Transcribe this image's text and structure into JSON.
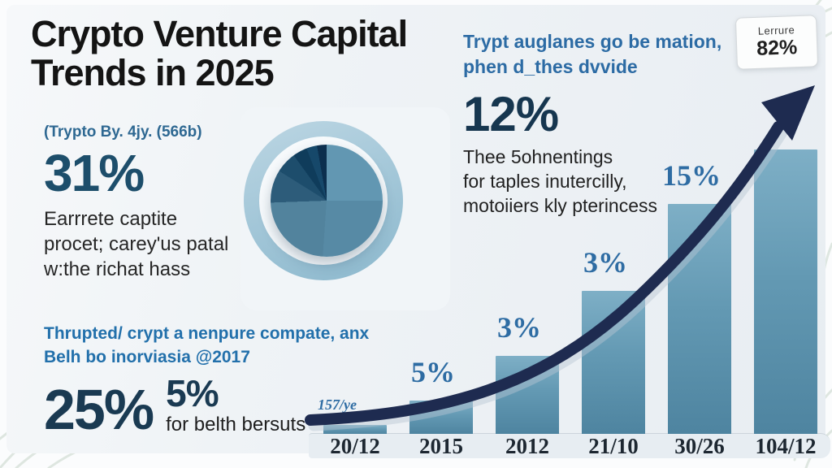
{
  "title": {
    "line1": "Crypto Venture Capital",
    "line2": "Trends in 2025"
  },
  "badge": {
    "label": "Lerrure",
    "value": "82%"
  },
  "left_stat": {
    "caption": "(Trypto By. 4jy. (566b)",
    "value": "31%",
    "desc_line1": "Earrrete captite",
    "desc_line2": "procet; carey'us patal",
    "desc_line3": "w:the richat hass"
  },
  "bottom_left": {
    "line1": "Thrupted/ crypt a nenpure compate, anx",
    "line2": "Belh bo inorviasia @2017",
    "big_value": "25%",
    "small_value": "5%",
    "caption": "for belth bersuts"
  },
  "right_block": {
    "line1": "Trypt auglanes go be mation,",
    "line2": "phen d_thes dvvide",
    "value": "12%",
    "desc_line1": "Thee 5ohnentings",
    "desc_line2": "for taples inutercilly,",
    "desc_line3": "motoiiers kly pterincess"
  },
  "chart_data": [
    {
      "type": "bar",
      "title": "",
      "xlabel": "",
      "ylabel": "",
      "categories": [
        "20/12",
        "2015",
        "2012",
        "21/10",
        "30/26",
        "104/12"
      ],
      "values": [
        11,
        41,
        96,
        176,
        283,
        350
      ],
      "values_note": "bar heights in px; baseline at y=528 of the 576px canvas",
      "bar_labels": [
        "157/ye",
        "5%",
        "3%",
        "3%",
        "15%",
        ""
      ],
      "grid": false,
      "legend": null,
      "trend_arrow": "dark navy exponential curve rising left-to-right, ending in an arrowhead at top right",
      "colors": {
        "bar_top": "#7eafc6",
        "bar_bottom": "#4e84a0",
        "labels": "#2e6ca3",
        "axis_text": "#1d2731",
        "arrow": "#1e2b50"
      }
    },
    {
      "type": "pie",
      "title": "",
      "slices": [
        {
          "angle_deg": 90,
          "color": "#6297b2"
        },
        {
          "angle_deg": 94,
          "color": "#578aa5"
        },
        {
          "angle_deg": 84,
          "color": "#52839d"
        },
        {
          "angle_deg": 34,
          "color": "#2d5c7a"
        },
        {
          "angle_deg": 22,
          "color": "#1d4d6c"
        },
        {
          "angle_deg": 15,
          "color": "#0f3c5b"
        },
        {
          "angle_deg": 11,
          "color": "#16486a"
        },
        {
          "angle_deg": 10,
          "color": "#0c2f4e"
        }
      ],
      "ring_color": "#a9c9da",
      "note": "donut ring with offset inner pie, no labels shown"
    }
  ]
}
